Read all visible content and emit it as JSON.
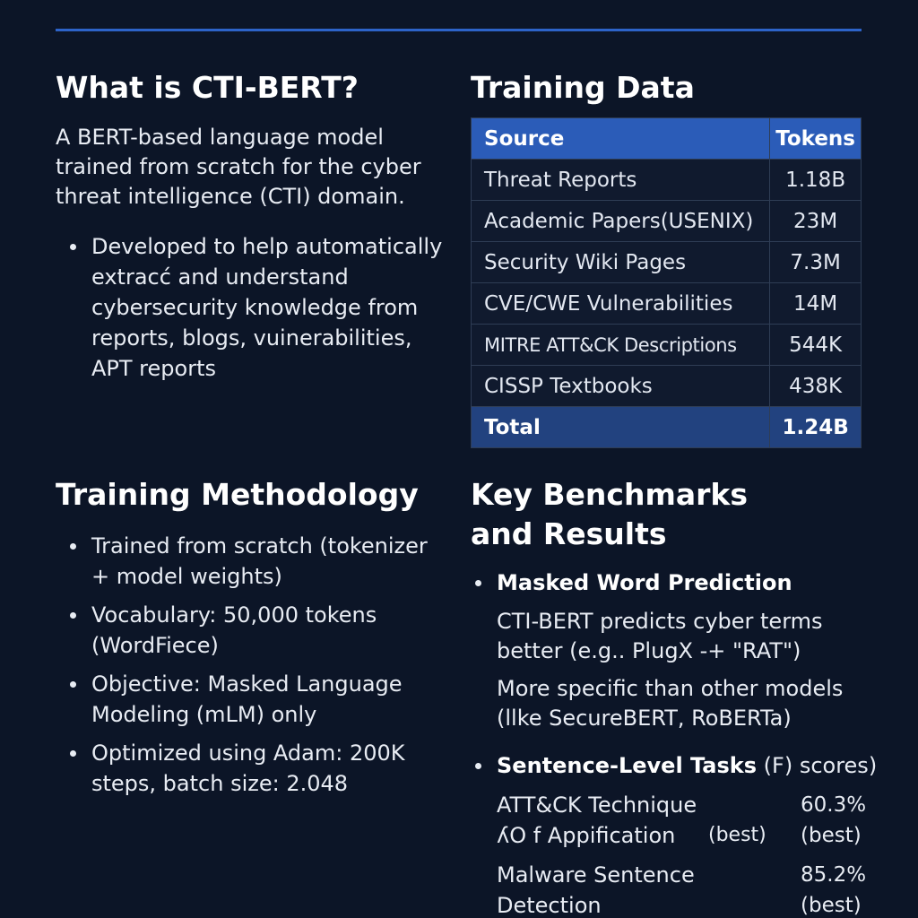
{
  "left": {
    "what": {
      "title": "What is CTI-BERT?",
      "intro": "A BERT-based language model trained from scratch for the cyber threat intelligence (CTI) domain.",
      "bullets": [
        "Developed to help automatically extracć and understand cybersecurity knowledge from reports, blogs, vuinerabilities, APT reports"
      ]
    },
    "method": {
      "title": "Training Methodology",
      "bullets": [
        "Trained from scratch (tokenizer + model weights)",
        "Vocabulary: 50,000 tokens (WordFiece)",
        "Objective: Masked Language Modeling (mLM) only",
        "Optimized using Adam: 200K steps, batch size: 2.048"
      ]
    }
  },
  "right": {
    "training_data": {
      "title": "Training Data",
      "headers": [
        "Source",
        "Tokens"
      ],
      "rows": [
        {
          "source": "Threat Reports",
          "tokens": "1.18B"
        },
        {
          "source": "Academic Papers(USENIX)",
          "tokens": "23M"
        },
        {
          "source": "Security Wiki Pages",
          "tokens": "7.3M"
        },
        {
          "source": "CVE/CWE Vulnerabilities",
          "tokens": "14M"
        },
        {
          "source": "MITRE ATT&CK Descriptions",
          "tokens": "544K"
        },
        {
          "source": "CISSP Textbooks",
          "tokens": "438K"
        }
      ],
      "total": {
        "label": "Total",
        "tokens": "1.24B"
      }
    },
    "benchmarks": {
      "title_line1": "Key Benchmarks",
      "title_line2": "and Results",
      "masked": {
        "heading": "Masked Word Prediction",
        "lines": [
          "CTI-BERT predicts cyber terms better (e.g.. PlugX -+ \"RAT\")",
          "More specific than other models (llke SecureBERT, RoBERTa)"
        ]
      },
      "sentence": {
        "heading": "Sentence-Level Tasks",
        "heading_suffix": " (F) scores)",
        "scores": [
          {
            "label_line1": "ATT&CK Technique",
            "label_line2": "ʎO f Appification",
            "inline_note": "(best)",
            "value": "60.3%",
            "value_note": "(best)"
          },
          {
            "label_line1": "Malware Sentence",
            "label_line2": "Detection",
            "inline_note": "",
            "value": "85.2%",
            "value_note": "(best)"
          }
        ]
      }
    }
  },
  "colors": {
    "background": "#0c1527",
    "accent_rule": "#2d63c8",
    "table_header": "#2b5cb8",
    "table_total": "#22427f"
  }
}
